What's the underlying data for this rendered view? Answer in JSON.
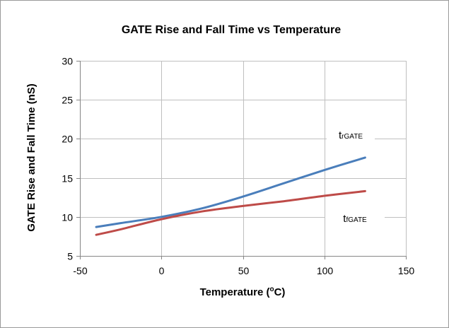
{
  "chart_data": {
    "type": "line",
    "title": "GATE Rise and Fall Time vs Temperature",
    "xlabel_main": "Temperature (",
    "xlabel_sup": "o",
    "xlabel_end": "C)",
    "ylabel": "GATE Rise and Fall Time (nS)",
    "xlim": [
      -50,
      150
    ],
    "ylim": [
      5,
      30
    ],
    "x_ticks": [
      -50,
      0,
      50,
      100,
      150
    ],
    "y_ticks": [
      5,
      10,
      15,
      20,
      25,
      30
    ],
    "grid": true,
    "series": [
      {
        "label_main": "t",
        "label_sub": "rGATE",
        "color": "#4a7ebb",
        "x": [
          -40,
          -25,
          0,
          25,
          50,
          75,
          100,
          125
        ],
        "y": [
          8.7,
          9.2,
          10.0,
          11.1,
          12.6,
          14.3,
          16.0,
          17.6
        ]
      },
      {
        "label_main": "t",
        "label_sub": "fGATE",
        "color": "#be4b48",
        "x": [
          -40,
          -25,
          0,
          25,
          50,
          75,
          100,
          125
        ],
        "y": [
          7.7,
          8.4,
          9.7,
          10.7,
          11.4,
          12.0,
          12.7,
          13.3
        ]
      }
    ]
  }
}
